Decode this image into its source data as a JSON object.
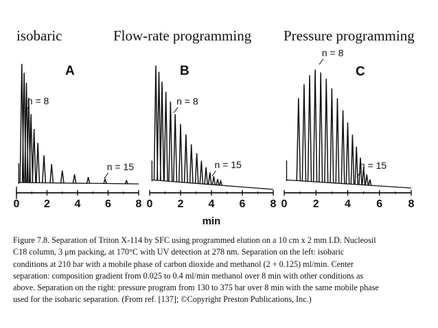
{
  "headings": [
    "isobaric",
    "Flow-rate programming",
    "Pressure programming"
  ],
  "chart_data": [
    {
      "type": "line",
      "title": "isobaric",
      "panel_label": "A",
      "x_range": [
        0,
        8
      ],
      "ticks": [
        "0",
        "2",
        "4",
        "6",
        "8"
      ],
      "peaks": {
        "x": [
          0.35,
          0.5,
          0.65,
          0.8,
          0.95,
          1.15,
          1.4,
          1.8,
          2.3,
          3.0,
          3.8,
          4.7,
          5.8,
          7.2
        ],
        "height": [
          0.95,
          0.88,
          0.8,
          0.68,
          0.55,
          0.43,
          0.32,
          0.22,
          0.15,
          0.1,
          0.07,
          0.05,
          0.035,
          0.025
        ]
      },
      "annotations": [
        {
          "text": "n = 8",
          "x": 0.95
        },
        {
          "text": "n = 15",
          "x": 7.2
        }
      ]
    },
    {
      "type": "line",
      "title": "Flow-rate programming",
      "panel_label": "B",
      "x_range": [
        0,
        8
      ],
      "ticks": [
        "0",
        "2",
        "4",
        "6",
        "8"
      ],
      "xlabel": "min",
      "peaks": {
        "x": [
          0.4,
          0.6,
          0.8,
          1.05,
          1.35,
          1.65,
          2.0,
          2.35,
          2.7,
          3.05,
          3.35,
          3.65,
          3.9,
          4.15,
          4.4,
          4.6
        ],
        "height": [
          0.95,
          0.9,
          0.82,
          0.74,
          0.66,
          0.56,
          0.48,
          0.4,
          0.32,
          0.25,
          0.19,
          0.14,
          0.1,
          0.07,
          0.05,
          0.035
        ]
      },
      "annotations": [
        {
          "text": "n = 8",
          "x": 1.65
        },
        {
          "text": "n = 15",
          "x": 4.4
        }
      ]
    },
    {
      "type": "line",
      "title": "Pressure programming",
      "panel_label": "C",
      "x_range": [
        0,
        8
      ],
      "ticks": [
        "0",
        "2",
        "4",
        "6",
        "8"
      ],
      "peaks": {
        "x": [
          0.9,
          1.25,
          1.6,
          1.95,
          2.3,
          2.65,
          3.0,
          3.35,
          3.7,
          4.0,
          4.3,
          4.55,
          4.8,
          5.0,
          5.2,
          5.4
        ],
        "height": [
          0.7,
          0.82,
          0.9,
          0.95,
          0.93,
          0.88,
          0.8,
          0.72,
          0.62,
          0.52,
          0.42,
          0.32,
          0.23,
          0.15,
          0.09,
          0.05
        ]
      },
      "annotations": [
        {
          "text": "n = 8",
          "x": 2.3
        },
        {
          "text": "n = 15",
          "x": 4.9
        }
      ]
    }
  ],
  "caption": {
    "line1": "Figure 7.8.  Separation of Triton X-114 by SFC using programmed elution on a 10 cm x 2 mm I.D. Nucleosil",
    "line2": "C18 column, 3 μm packing, at 170°C with UV detection at 278 nm. Separation on the left: isobaric",
    "line3": "conditions at 210 bar with a mobile phase of carbon dioxide and methanol (2 + 0.125) ml/min. Center",
    "line4": "separation: composition gradient from 0.025 to 0.4 ml/min methanol over 8 min with other conditions as",
    "line5": "above. Separation on the right: pressure program from 130 to 375 bar over 8 min with the same mobile phase",
    "line6": "used for the isobaric separation. (From ref. [137]; ©Copyright Preston Publications, Inc.)"
  }
}
